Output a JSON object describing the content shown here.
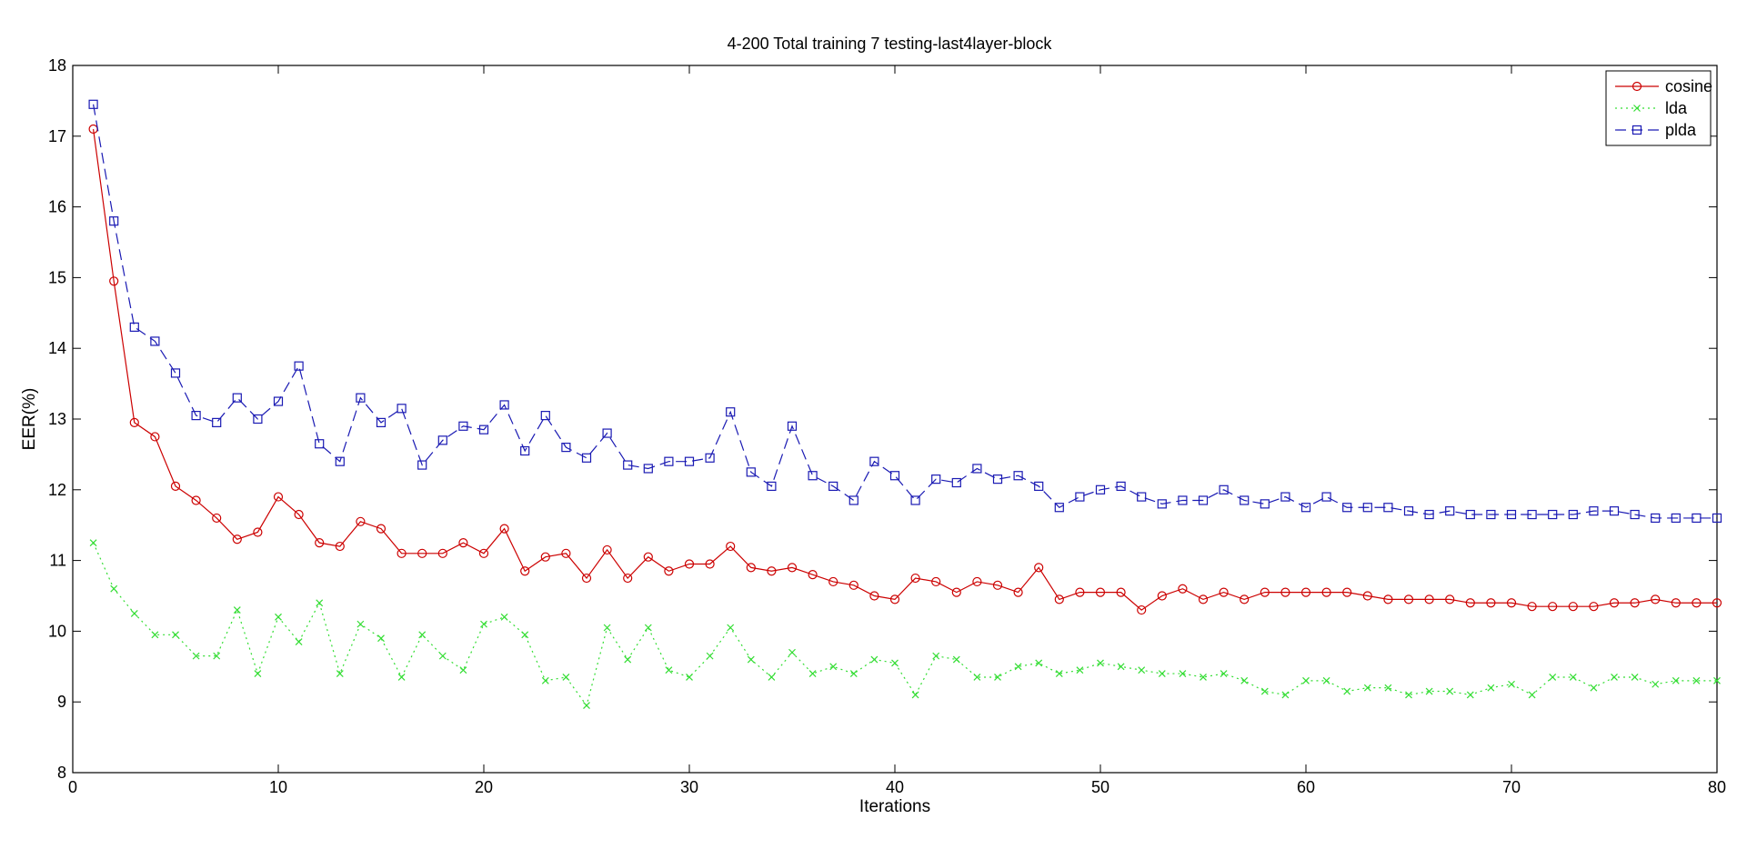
{
  "chart_data": {
    "type": "line",
    "title": "4-200 Total training 7 testing-last4layer-block",
    "xlabel": "Iterations",
    "ylabel": "EER(%)",
    "xlim": [
      0,
      80
    ],
    "ylim": [
      8,
      18
    ],
    "xticks": [
      0,
      10,
      20,
      30,
      40,
      50,
      60,
      70,
      80
    ],
    "yticks": [
      8,
      9,
      10,
      11,
      12,
      13,
      14,
      15,
      16,
      17,
      18
    ],
    "grid": false,
    "legend_position": "top-right",
    "x": [
      1,
      2,
      3,
      4,
      5,
      6,
      7,
      8,
      9,
      10,
      11,
      12,
      13,
      14,
      15,
      16,
      17,
      18,
      19,
      20,
      21,
      22,
      23,
      24,
      25,
      26,
      27,
      28,
      29,
      30,
      31,
      32,
      33,
      34,
      35,
      36,
      37,
      38,
      39,
      40,
      41,
      42,
      43,
      44,
      45,
      46,
      47,
      48,
      49,
      50,
      51,
      52,
      53,
      54,
      55,
      56,
      57,
      58,
      59,
      60,
      61,
      62,
      63,
      64,
      65,
      66,
      67,
      68,
      69,
      70,
      71,
      72,
      73,
      74,
      75,
      76,
      77,
      78,
      79,
      80
    ],
    "series": [
      {
        "name": "cosine",
        "color": "#cc0000",
        "line_style": "solid",
        "marker": "circle",
        "values": [
          17.1,
          14.95,
          12.95,
          12.75,
          12.05,
          11.85,
          11.6,
          11.3,
          11.4,
          11.9,
          11.65,
          11.25,
          11.2,
          11.55,
          11.45,
          11.1,
          11.1,
          11.1,
          11.25,
          11.1,
          11.45,
          10.85,
          11.05,
          11.1,
          10.75,
          11.15,
          10.75,
          11.05,
          10.85,
          10.95,
          10.95,
          11.2,
          10.9,
          10.85,
          10.9,
          10.8,
          10.7,
          10.65,
          10.5,
          10.45,
          10.75,
          10.7,
          10.55,
          10.7,
          10.65,
          10.55,
          10.9,
          10.45,
          10.55,
          10.55,
          10.55,
          10.3,
          10.5,
          10.6,
          10.45,
          10.55,
          10.45,
          10.55,
          10.55,
          10.55,
          10.55,
          10.55,
          10.5,
          10.45,
          10.45,
          10.45,
          10.45,
          10.4,
          10.4,
          10.4,
          10.35,
          10.35,
          10.35,
          10.35,
          10.4,
          10.4,
          10.45,
          10.4,
          10.4,
          10.4
        ]
      },
      {
        "name": "lda",
        "color": "#33dd33",
        "line_style": "dotted",
        "marker": "x",
        "values": [
          11.25,
          10.6,
          10.25,
          9.95,
          9.95,
          9.65,
          9.65,
          10.3,
          9.4,
          10.2,
          9.85,
          10.4,
          9.4,
          10.1,
          9.9,
          9.35,
          9.95,
          9.65,
          9.45,
          10.1,
          10.2,
          9.95,
          9.3,
          9.35,
          8.95,
          10.05,
          9.6,
          10.05,
          9.45,
          9.35,
          9.65,
          10.05,
          9.6,
          9.35,
          9.7,
          9.4,
          9.5,
          9.4,
          9.6,
          9.55,
          9.1,
          9.65,
          9.6,
          9.35,
          9.35,
          9.5,
          9.55,
          9.4,
          9.45,
          9.55,
          9.5,
          9.45,
          9.4,
          9.4,
          9.35,
          9.4,
          9.3,
          9.15,
          9.1,
          9.3,
          9.3,
          9.15,
          9.2,
          9.2,
          9.1,
          9.15,
          9.15,
          9.1,
          9.2,
          9.25,
          9.1,
          9.35,
          9.35,
          9.2,
          9.35,
          9.35,
          9.25,
          9.3,
          9.3,
          9.3
        ]
      },
      {
        "name": "plda",
        "color": "#1a1ab3",
        "line_style": "dashed",
        "marker": "square",
        "values": [
          17.45,
          15.8,
          14.3,
          14.1,
          13.65,
          13.05,
          12.95,
          13.3,
          13.0,
          13.25,
          13.75,
          12.65,
          12.4,
          13.3,
          12.95,
          13.15,
          12.35,
          12.7,
          12.9,
          12.85,
          13.2,
          12.55,
          13.05,
          12.6,
          12.45,
          12.8,
          12.35,
          12.3,
          12.4,
          12.4,
          12.45,
          13.1,
          12.25,
          12.05,
          12.9,
          12.2,
          12.05,
          11.85,
          12.4,
          12.2,
          11.85,
          12.15,
          12.1,
          12.3,
          12.15,
          12.2,
          12.05,
          11.75,
          11.9,
          12.0,
          12.05,
          11.9,
          11.8,
          11.85,
          11.85,
          12.0,
          11.85,
          11.8,
          11.9,
          11.75,
          11.9,
          11.75,
          11.75,
          11.75,
          11.7,
          11.65,
          11.7,
          11.65,
          11.65,
          11.65,
          11.65,
          11.65,
          11.65,
          11.7,
          11.7,
          11.65,
          11.6,
          11.6,
          11.6,
          11.6
        ]
      }
    ]
  }
}
